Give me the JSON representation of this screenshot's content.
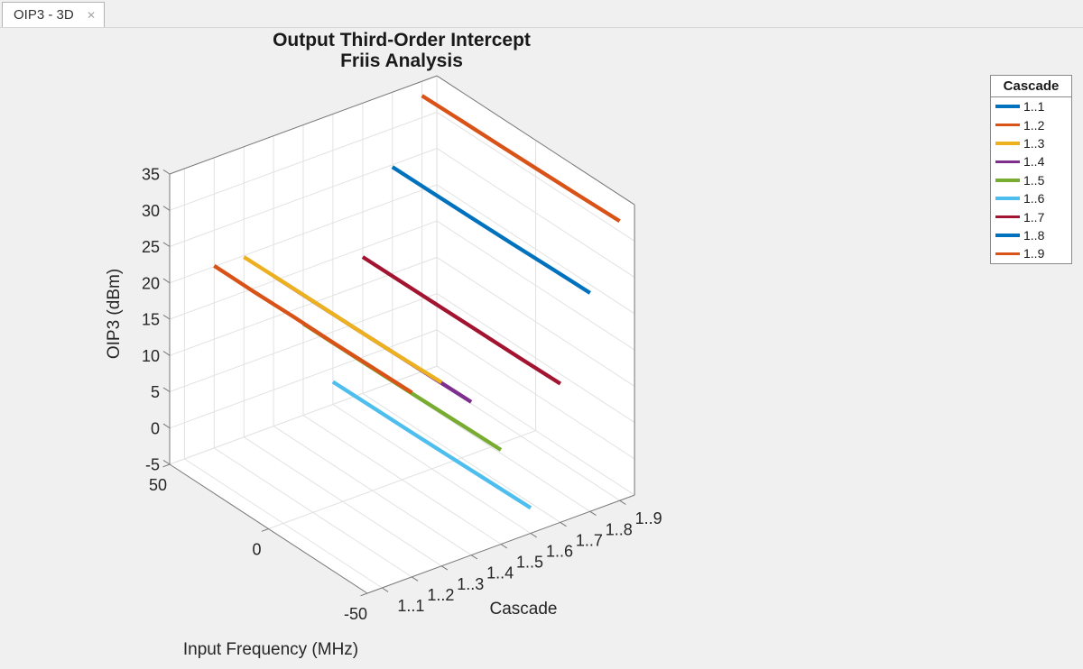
{
  "window": {
    "tab_label": "OIP3 - 3D",
    "close_label": "✕"
  },
  "title": {
    "line1": "Output Third-Order Intercept",
    "line2": "Friis Analysis"
  },
  "axis_labels": {
    "x": "Input Frequency (MHz)",
    "y": "Cascade",
    "z": "OIP3 (dBm)"
  },
  "legend": {
    "title": "Cascade"
  },
  "colors": {
    "background": "#f0f0f0",
    "wall": "#ffffff",
    "grid": "#e2e2e2",
    "axis_edge": "#787878",
    "tick_text": "#262626"
  },
  "chart_data": {
    "type": "line",
    "projection": "3d",
    "title": "Output Third-Order Intercept Friis Analysis",
    "xlabel": "Input Frequency (MHz)",
    "ylabel": "Cascade",
    "zlabel": "OIP3 (dBm)",
    "xlim": [
      -50,
      50
    ],
    "ylim": [
      0.5,
      9.5
    ],
    "zlim": [
      -5,
      35
    ],
    "xticks": [
      50,
      0,
      -50
    ],
    "yticks": [
      "1..1",
      "1..2",
      "1..3",
      "1..4",
      "1..5",
      "1..6",
      "1..7",
      "1..8",
      "1..9"
    ],
    "zticks": [
      35,
      30,
      25,
      20,
      15,
      10,
      5,
      0,
      -5
    ],
    "grid": true,
    "legend_title": "Cascade",
    "legend_position": "top-right",
    "frequencies_mhz": [
      50,
      30,
      10,
      -10,
      -30,
      -50
    ],
    "series": [
      {
        "name": "1..1",
        "cascade": 1,
        "color": "#0072BD",
        "plotted": false,
        "oip3_dbm": []
      },
      {
        "name": "1..2",
        "cascade": 2,
        "color": "#D95319",
        "plotted": true,
        "oip3_dbm": [
          20.1,
          20.1,
          20.2,
          20.2,
          20.3,
          20.4
        ]
      },
      {
        "name": "1..3",
        "cascade": 3,
        "color": "#EDB120",
        "plotted": true,
        "oip3_dbm": [
          19.8,
          19.9,
          19.95,
          20.0,
          20.1,
          20.3
        ]
      },
      {
        "name": "1..4",
        "cascade": 4,
        "color": "#7E2F8E",
        "plotted": true,
        "oip3_dbm": [
          15.7,
          15.75,
          15.8,
          15.9,
          16.0,
          16.1
        ]
      },
      {
        "name": "1..5",
        "cascade": 5,
        "color": "#77AC30",
        "plotted": true,
        "oip3_dbm": [
          7.6,
          7.65,
          7.7,
          7.8,
          7.9,
          8.0
        ]
      },
      {
        "name": "1..6",
        "cascade": 6,
        "color": "#4DBEEE",
        "plotted": true,
        "oip3_dbm": [
          -1.9,
          -1.85,
          -1.8,
          -1.7,
          -1.6,
          -1.5
        ]
      },
      {
        "name": "1..7",
        "cascade": 7,
        "color": "#A2142F",
        "plotted": true,
        "oip3_dbm": [
          13.8,
          13.85,
          13.9,
          13.95,
          14.0,
          14.1
        ]
      },
      {
        "name": "1..8",
        "cascade": 8,
        "color": "#0072BD",
        "plotted": true,
        "oip3_dbm": [
          24.7,
          24.75,
          24.8,
          24.9,
          25.0,
          25.1
        ]
      },
      {
        "name": "1..9",
        "cascade": 9,
        "color": "#D95319",
        "plotted": true,
        "oip3_dbm": [
          33.0,
          33.1,
          33.15,
          33.25,
          33.35,
          33.5
        ]
      }
    ]
  }
}
